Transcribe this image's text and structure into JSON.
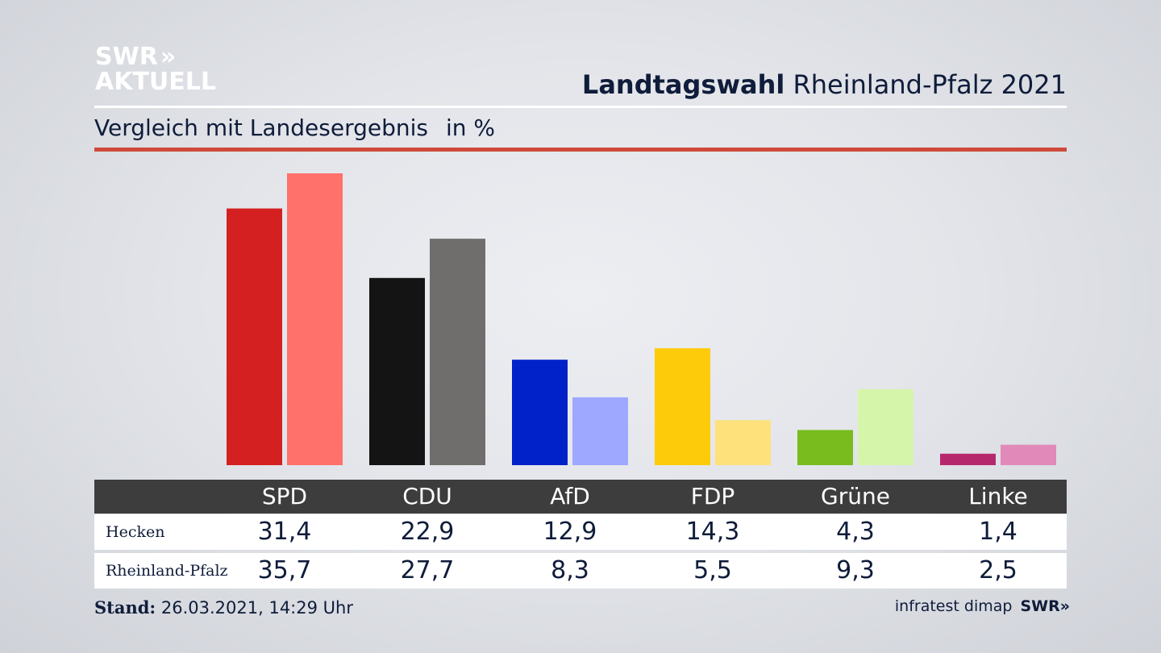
{
  "brand": {
    "logo_line1": "SWR",
    "logo_arrows": "»",
    "logo_line2": "AKTUELL"
  },
  "header": {
    "title_bold": "Landtagswahl",
    "title_rest": "Rheinland-Pfalz 2021",
    "subtitle": "Vergleich mit Landesergebnis",
    "unit": "in %"
  },
  "colors": {
    "accent_rule": "#cf4a3a",
    "table_header": "#3d3d3d"
  },
  "chart_data": {
    "type": "bar",
    "categories": [
      "SPD",
      "CDU",
      "AfD",
      "FDP",
      "Grüne",
      "Linke"
    ],
    "series": [
      {
        "name": "Hecken",
        "values": [
          31.4,
          22.9,
          12.9,
          14.3,
          4.3,
          1.4
        ],
        "display": [
          "31,4",
          "22,9",
          "12,9",
          "14,3",
          "4,3",
          "1,4"
        ],
        "colors": [
          "#d42020",
          "#141414",
          "#0022c8",
          "#fdcb0a",
          "#78bc1e",
          "#b6286c"
        ]
      },
      {
        "name": "Rheinland-Pfalz",
        "values": [
          35.7,
          27.7,
          8.3,
          5.5,
          9.3,
          2.5
        ],
        "display": [
          "35,7",
          "27,7",
          "8,3",
          "5,5",
          "9,3",
          "2,5"
        ],
        "colors": [
          "#ff716a",
          "#706e6c",
          "#9ea8ff",
          "#fee17a",
          "#d5f5ab",
          "#e18ab9"
        ]
      }
    ],
    "ylim": [
      0,
      36
    ],
    "grid": false,
    "legend": "table-below"
  },
  "footer": {
    "stand_label": "Stand:",
    "stand_value": "26.03.2021, 14:29 Uhr",
    "source": "infratest dimap",
    "brand": "SWR",
    "brand_arrows": "»"
  }
}
